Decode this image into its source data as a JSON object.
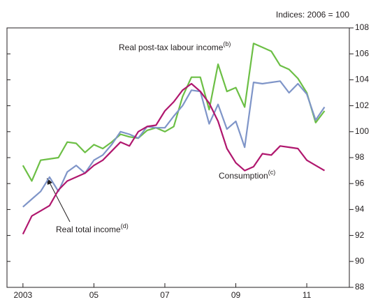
{
  "chart_data": {
    "type": "line",
    "y_label": "Indices:  2006 = 100",
    "x": [
      2003,
      2003.25,
      2003.5,
      2003.75,
      2004,
      2004.25,
      2004.5,
      2004.75,
      2005,
      2005.25,
      2005.5,
      2005.75,
      2006,
      2006.25,
      2006.5,
      2006.75,
      2007,
      2007.25,
      2007.5,
      2007.75,
      2008,
      2008.25,
      2008.5,
      2008.75,
      2009,
      2009.25,
      2009.5,
      2009.75,
      2010,
      2010.25,
      2010.5,
      2010.75,
      2011,
      2011.25,
      2011.5
    ],
    "series": [
      {
        "name": "Real post-tax labour income",
        "note": "(b)",
        "color": "#6cbf45",
        "values": [
          97.4,
          96.2,
          97.8,
          97.9,
          98.0,
          99.2,
          99.1,
          98.4,
          99.0,
          98.7,
          99.2,
          99.8,
          99.6,
          99.5,
          100.1,
          100.3,
          100.0,
          100.4,
          102.7,
          104.2,
          104.2,
          101.7,
          105.2,
          103.1,
          103.4,
          101.9,
          106.8,
          106.5,
          106.2,
          105.1,
          104.8,
          104.1,
          103.0,
          100.7,
          101.6
        ]
      },
      {
        "name": "Real total income",
        "note": "(d)",
        "color": "#7f95c8",
        "values": [
          94.2,
          94.8,
          95.4,
          96.5,
          95.4,
          96.9,
          97.4,
          96.8,
          97.8,
          98.2,
          99.0,
          100.0,
          99.8,
          99.5,
          100.4,
          100.3,
          100.3,
          101.2,
          102.0,
          103.2,
          103.1,
          100.6,
          102.1,
          100.2,
          100.8,
          98.8,
          103.8,
          103.7,
          103.8,
          103.9,
          103.0,
          103.7,
          102.9,
          100.9,
          101.9
        ]
      },
      {
        "name": "Consumption",
        "note": "(c)",
        "color": "#b0176e",
        "values": [
          92.1,
          93.5,
          93.9,
          94.3,
          95.5,
          96.2,
          96.5,
          96.8,
          97.4,
          97.8,
          98.5,
          99.2,
          98.9,
          100.0,
          100.4,
          100.5,
          101.6,
          102.3,
          103.2,
          103.7,
          103.1,
          102.2,
          100.8,
          98.7,
          97.6,
          97.0,
          97.3,
          98.3,
          98.2,
          98.9,
          98.8,
          98.7,
          97.8,
          97.4,
          97.0
        ]
      }
    ],
    "xlim": [
      2002.55,
      2012.2
    ],
    "xticks": [
      {
        "value": 2003,
        "label": "2003"
      },
      {
        "value": 2005,
        "label": "05"
      },
      {
        "value": 2007,
        "label": "07"
      },
      {
        "value": 2009,
        "label": "09"
      },
      {
        "value": 2011,
        "label": "11"
      }
    ],
    "ylim": [
      88,
      108
    ],
    "yticks": [
      88,
      90,
      92,
      94,
      96,
      98,
      100,
      102,
      104,
      106,
      108
    ]
  }
}
